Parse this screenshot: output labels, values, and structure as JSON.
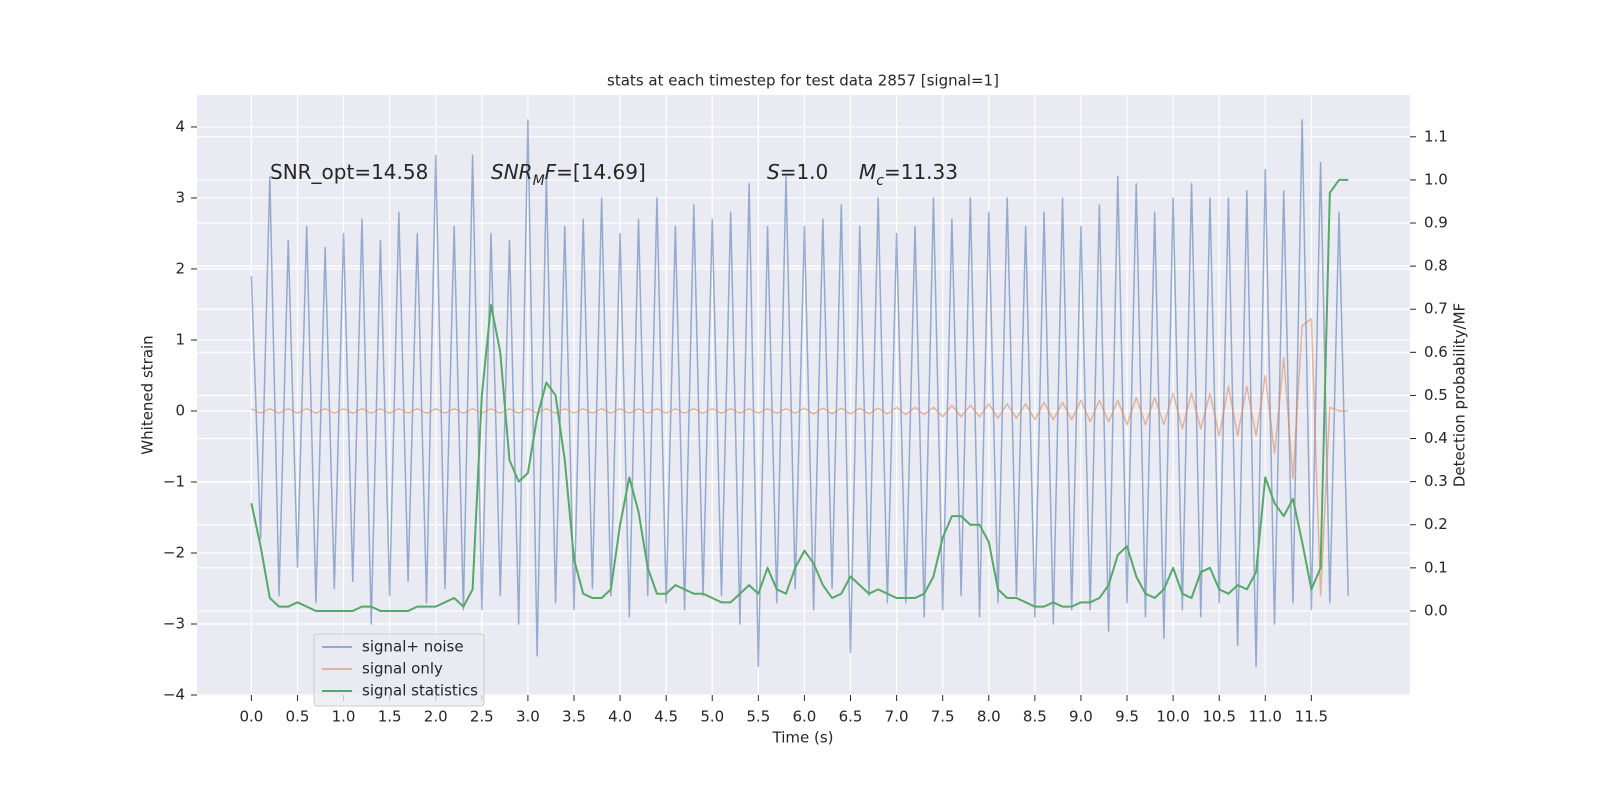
{
  "chart_data": {
    "type": "line",
    "title": "stats at each timestep for test data 2857 [signal=1]",
    "xlabel": "Time (s)",
    "ylabel": "Whitened strain",
    "y2label": "Detection probability/MF",
    "annotations": [
      [
        {
          "text": "SNR_opt=14.58",
          "style": "normal"
        }
      ],
      [
        {
          "text": "SNR",
          "style": "italic"
        },
        {
          "text": "M",
          "style": "sub"
        },
        {
          "text": "F",
          "style": "italic"
        },
        {
          "text": "=[14.69]",
          "style": "normal"
        }
      ],
      [
        {
          "text": "S",
          "style": "italic"
        },
        {
          "text": "=1.0",
          "style": "normal"
        }
      ],
      [
        {
          "text": "M",
          "style": "italic"
        },
        {
          "text": "c",
          "style": "sub"
        },
        {
          "text": "=11.33",
          "style": "normal"
        }
      ]
    ],
    "grid": true,
    "legend_position": "lower left",
    "xlim": [
      -0.59,
      12.57
    ],
    "ylim": [
      -4.0,
      4.45
    ],
    "y2lim": [
      -0.195,
      1.197
    ],
    "xticks": [
      {
        "value": 0,
        "label": "0.0"
      },
      {
        "value": 0.5,
        "label": "0.5"
      },
      {
        "value": 1,
        "label": "1.0"
      },
      {
        "value": 1.5,
        "label": "1.5"
      },
      {
        "value": 2,
        "label": "2.0"
      },
      {
        "value": 2.5,
        "label": "2.5"
      },
      {
        "value": 3,
        "label": "3.0"
      },
      {
        "value": 3.5,
        "label": "3.5"
      },
      {
        "value": 4,
        "label": "4.0"
      },
      {
        "value": 4.5,
        "label": "4.5"
      },
      {
        "value": 5,
        "label": "5.0"
      },
      {
        "value": 5.5,
        "label": "5.5"
      },
      {
        "value": 6,
        "label": "6.0"
      },
      {
        "value": 6.5,
        "label": "6.5"
      },
      {
        "value": 7,
        "label": "7.0"
      },
      {
        "value": 7.5,
        "label": "7.5"
      },
      {
        "value": 8,
        "label": "8.0"
      },
      {
        "value": 8.5,
        "label": "8.5"
      },
      {
        "value": 9,
        "label": "9.0"
      },
      {
        "value": 9.5,
        "label": "9.5"
      },
      {
        "value": 10,
        "label": "10.0"
      },
      {
        "value": 10.5,
        "label": "10.5"
      },
      {
        "value": 11,
        "label": "11.0"
      },
      {
        "value": 11.5,
        "label": "11.5"
      }
    ],
    "yticks": [
      {
        "value": -4,
        "label": "−4"
      },
      {
        "value": -3,
        "label": "−3"
      },
      {
        "value": -2,
        "label": "−2"
      },
      {
        "value": -1,
        "label": "−1"
      },
      0,
      1,
      2,
      3,
      4
    ],
    "y2ticks": [
      {
        "value": 0,
        "label": "0.0"
      },
      0.1,
      0.2,
      0.3,
      0.4,
      0.5,
      0.6,
      0.7,
      0.8,
      0.9,
      {
        "value": 1,
        "label": "1.0"
      },
      1.1
    ],
    "x": [
      0,
      0.1,
      0.2,
      0.3,
      0.4,
      0.5,
      0.6,
      0.7,
      0.8,
      0.9,
      1,
      1.1,
      1.2,
      1.3,
      1.4,
      1.5,
      1.6,
      1.7,
      1.8,
      1.9,
      2,
      2.1,
      2.2,
      2.3,
      2.4,
      2.5,
      2.6,
      2.7,
      2.8,
      2.9,
      3,
      3.1,
      3.2,
      3.3,
      3.4,
      3.5,
      3.6,
      3.7,
      3.8,
      3.9,
      4,
      4.1,
      4.2,
      4.3,
      4.4,
      4.5,
      4.6,
      4.7,
      4.8,
      4.9,
      5,
      5.1,
      5.2,
      5.3,
      5.4,
      5.5,
      5.6,
      5.7,
      5.8,
      5.9,
      6,
      6.1,
      6.2,
      6.3,
      6.4,
      6.5,
      6.6,
      6.7,
      6.8,
      6.9,
      7,
      7.1,
      7.2,
      7.3,
      7.4,
      7.5,
      7.6,
      7.7,
      7.8,
      7.9,
      8,
      8.1,
      8.2,
      8.3,
      8.4,
      8.5,
      8.6,
      8.7,
      8.8,
      8.9,
      9,
      9.1,
      9.2,
      9.3,
      9.4,
      9.5,
      9.6,
      9.7,
      9.8,
      9.9,
      10,
      10.1,
      10.2,
      10.3,
      10.4,
      10.5,
      10.6,
      10.7,
      10.8,
      10.9,
      11,
      11.1,
      11.2,
      11.3,
      11.4,
      11.5,
      11.6,
      11.7,
      11.8,
      11.9
    ],
    "series": [
      {
        "name": "signal+ noise",
        "color": "#4c72b0",
        "axis": "y",
        "values": [
          1.9,
          -1.8,
          3.3,
          -2.6,
          2.4,
          -2.2,
          2.6,
          -2.7,
          2.3,
          -2.5,
          2.5,
          -2.4,
          2.7,
          -3.0,
          2.4,
          -2.6,
          2.8,
          -2.4,
          2.5,
          -2.7,
          3.6,
          -2.5,
          2.6,
          -2.8,
          3.6,
          -2.8,
          2.5,
          -2.6,
          2.4,
          -3.0,
          4.1,
          -3.45,
          3.3,
          -2.7,
          2.6,
          -2.8,
          2.7,
          -2.5,
          3.0,
          -2.6,
          2.5,
          -2.9,
          2.7,
          -2.6,
          3.0,
          -2.7,
          2.6,
          -2.8,
          2.9,
          -2.6,
          2.7,
          -2.6,
          2.8,
          -3.0,
          3.2,
          -3.6,
          2.6,
          -2.7,
          3.3,
          -2.5,
          2.6,
          -2.8,
          2.7,
          -2.5,
          2.9,
          -3.4,
          2.6,
          -2.6,
          3.0,
          -2.7,
          2.5,
          -2.7,
          2.6,
          -2.9,
          3.0,
          -2.8,
          2.7,
          -2.6,
          3.0,
          -2.9,
          2.8,
          -2.7,
          3.0,
          -2.6,
          2.6,
          -2.9,
          2.8,
          -3.0,
          3.0,
          -2.8,
          2.6,
          -2.8,
          2.9,
          -3.1,
          3.3,
          -2.7,
          3.2,
          -2.9,
          2.8,
          -3.2,
          3.0,
          -2.8,
          3.2,
          -2.9,
          3.0,
          -2.7,
          3.0,
          -3.3,
          3.1,
          -3.6,
          3.4,
          -3.0,
          3.1,
          -2.7,
          4.1,
          -2.8,
          3.5,
          -2.7,
          2.8,
          -2.6
        ]
      },
      {
        "name": "signal only",
        "color": "#dd8452",
        "axis": "y",
        "values": [
          0.03,
          -0.03,
          0.03,
          -0.03,
          0.03,
          -0.03,
          0.03,
          -0.03,
          0.03,
          -0.03,
          0.03,
          -0.03,
          0.03,
          -0.03,
          0.03,
          -0.03,
          0.03,
          -0.03,
          0.03,
          -0.03,
          0.03,
          -0.03,
          0.03,
          -0.03,
          0.03,
          -0.03,
          0.03,
          -0.03,
          0.03,
          -0.03,
          0.03,
          -0.03,
          0.03,
          -0.03,
          0.03,
          -0.03,
          0.03,
          -0.03,
          0.03,
          -0.03,
          0.03,
          -0.03,
          0.03,
          -0.03,
          0.03,
          -0.03,
          0.03,
          -0.03,
          0.03,
          -0.03,
          0.03,
          -0.03,
          0.03,
          -0.03,
          0.03,
          -0.03,
          0.03,
          -0.03,
          0.03,
          -0.03,
          0.04,
          -0.04,
          0.04,
          -0.04,
          0.04,
          -0.04,
          0.04,
          -0.04,
          0.04,
          -0.04,
          0.05,
          -0.05,
          0.05,
          -0.05,
          0.05,
          -0.08,
          0.08,
          -0.08,
          0.08,
          -0.08,
          0.1,
          -0.1,
          0.1,
          -0.1,
          0.1,
          -0.12,
          0.12,
          -0.12,
          0.12,
          -0.12,
          0.15,
          -0.15,
          0.15,
          -0.15,
          0.15,
          -0.19,
          0.19,
          -0.19,
          0.19,
          -0.19,
          0.25,
          -0.25,
          0.25,
          -0.25,
          0.25,
          -0.35,
          0.35,
          -0.35,
          0.35,
          -0.35,
          0.5,
          -0.6,
          0.75,
          -0.95,
          1.2,
          1.3,
          -2.6,
          0.05,
          0.0,
          0.0
        ]
      },
      {
        "name": "signal statistics",
        "color": "#55a868",
        "axis": "y2",
        "values": [
          0.25,
          0.15,
          0.03,
          0.01,
          0.01,
          0.02,
          0.01,
          0.0,
          0.0,
          0.0,
          0.0,
          0.0,
          0.01,
          0.01,
          0.0,
          0.0,
          0.0,
          0.0,
          0.01,
          0.01,
          0.01,
          0.02,
          0.03,
          0.01,
          0.05,
          0.5,
          0.71,
          0.6,
          0.35,
          0.3,
          0.32,
          0.45,
          0.53,
          0.5,
          0.35,
          0.12,
          0.04,
          0.03,
          0.03,
          0.05,
          0.2,
          0.31,
          0.23,
          0.1,
          0.04,
          0.04,
          0.06,
          0.05,
          0.04,
          0.04,
          0.03,
          0.02,
          0.02,
          0.04,
          0.06,
          0.04,
          0.1,
          0.05,
          0.04,
          0.1,
          0.14,
          0.11,
          0.06,
          0.03,
          0.04,
          0.08,
          0.06,
          0.04,
          0.05,
          0.04,
          0.03,
          0.03,
          0.03,
          0.04,
          0.08,
          0.17,
          0.22,
          0.22,
          0.2,
          0.2,
          0.16,
          0.05,
          0.03,
          0.03,
          0.02,
          0.01,
          0.01,
          0.02,
          0.01,
          0.01,
          0.02,
          0.02,
          0.03,
          0.06,
          0.13,
          0.15,
          0.08,
          0.04,
          0.03,
          0.05,
          0.1,
          0.04,
          0.03,
          0.09,
          0.1,
          0.05,
          0.04,
          0.06,
          0.05,
          0.09,
          0.31,
          0.25,
          0.22,
          0.26,
          0.16,
          0.05,
          0.1,
          0.97,
          1.0,
          1.0
        ]
      }
    ]
  }
}
